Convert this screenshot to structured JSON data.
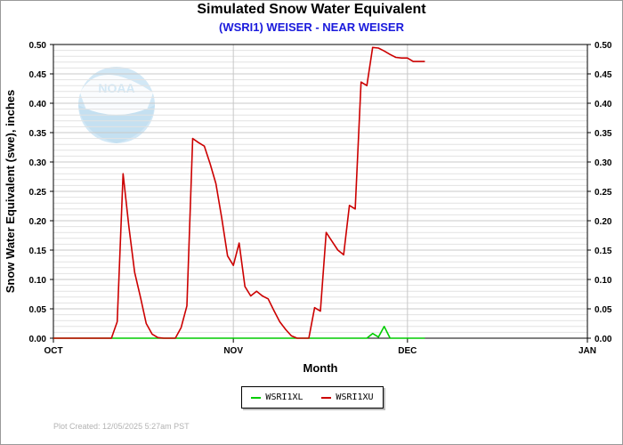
{
  "title": "Simulated Snow Water Equivalent",
  "subtitle": "(WSRI1) WEISER - NEAR WEISER",
  "footer": "Plot Created: 12/05/2025 5:27am PST",
  "watermark_text": "NOAA",
  "colors": {
    "subtitle": "#1a1adc",
    "WSRI1XL": "#00cc00",
    "WSRI1XU": "#cc0000"
  },
  "chart_data": {
    "type": "line",
    "xlabel": "Month",
    "ylabel": "Snow Water Equivalent (swe),  inches",
    "ylim": [
      0,
      0.5
    ],
    "y_ticks": [
      "0.00",
      "0.05",
      "0.10",
      "0.15",
      "0.20",
      "0.25",
      "0.30",
      "0.35",
      "0.40",
      "0.45",
      "0.50"
    ],
    "x_ticks": [
      {
        "label": "OCT",
        "date": "2025-10-01"
      },
      {
        "label": "NOV",
        "date": "2025-11-01"
      },
      {
        "label": "DEC",
        "date": "2025-12-01"
      },
      {
        "label": "JAN",
        "date": "2026-01-01"
      }
    ],
    "xlim": [
      "2025-10-01",
      "2026-01-01"
    ],
    "grid": true,
    "legend": "bottom-center",
    "series": [
      {
        "name": "WSRI1XL",
        "color": "#00cc00",
        "x": [
          "2025-10-01",
          "2025-10-31",
          "2025-11-24",
          "2025-11-25",
          "2025-11-26",
          "2025-11-27",
          "2025-11-28",
          "2025-11-29",
          "2025-12-04"
        ],
        "values": [
          0,
          0,
          0,
          0.008,
          0.002,
          0.02,
          0,
          0,
          0
        ]
      },
      {
        "name": "WSRI1XU",
        "color": "#cc0000",
        "x": [
          "2025-10-01",
          "2025-10-11",
          "2025-10-12",
          "2025-10-13",
          "2025-10-14",
          "2025-10-15",
          "2025-10-16",
          "2025-10-17",
          "2025-10-18",
          "2025-10-19",
          "2025-10-20",
          "2025-10-21",
          "2025-10-22",
          "2025-10-23",
          "2025-10-24",
          "2025-10-25",
          "2025-10-26",
          "2025-10-27",
          "2025-10-28",
          "2025-10-29",
          "2025-10-30",
          "2025-10-31",
          "2025-11-01",
          "2025-11-02",
          "2025-11-03",
          "2025-11-04",
          "2025-11-05",
          "2025-11-06",
          "2025-11-07",
          "2025-11-08",
          "2025-11-09",
          "2025-11-10",
          "2025-11-11",
          "2025-11-12",
          "2025-11-13",
          "2025-11-14",
          "2025-11-15",
          "2025-11-16",
          "2025-11-17",
          "2025-11-18",
          "2025-11-19",
          "2025-11-20",
          "2025-11-21",
          "2025-11-22",
          "2025-11-23",
          "2025-11-24",
          "2025-11-25",
          "2025-11-26",
          "2025-11-27",
          "2025-11-28",
          "2025-11-29",
          "2025-11-30",
          "2025-12-01",
          "2025-12-02",
          "2025-12-03",
          "2025-12-04"
        ],
        "values": [
          0,
          0,
          0.028,
          0.28,
          0.19,
          0.112,
          0.07,
          0.025,
          0.007,
          0.001,
          0,
          0,
          0,
          0.018,
          0.055,
          0.34,
          0.333,
          0.327,
          0.297,
          0.263,
          0.205,
          0.14,
          0.124,
          0.162,
          0.088,
          0.072,
          0.08,
          0.072,
          0.067,
          0.047,
          0.028,
          0.015,
          0.004,
          0,
          0,
          0,
          0.052,
          0.046,
          0.18,
          0.165,
          0.15,
          0.142,
          0.226,
          0.22,
          0.436,
          0.43,
          0.495,
          0.494,
          0.489,
          0.483,
          0.478,
          0.477,
          0.477,
          0.471,
          0.471,
          0.471
        ]
      }
    ]
  }
}
